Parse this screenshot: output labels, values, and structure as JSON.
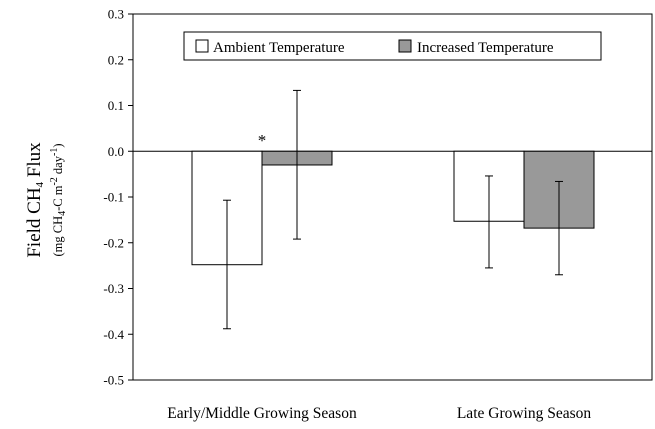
{
  "chart_data": {
    "type": "bar",
    "categories": [
      "Early/Middle Growing Season",
      "Late Growing Season"
    ],
    "series": [
      {
        "name": "Ambient Temperature",
        "values": [
          -0.248,
          -0.153
        ],
        "error_low": [
          -0.388,
          -0.255
        ],
        "error_high": [
          -0.107,
          -0.054
        ],
        "color": "#ffffff"
      },
      {
        "name": "Increased Temperature",
        "values": [
          -0.03,
          -0.168
        ],
        "error_low": [
          -0.192,
          -0.27
        ],
        "error_high": [
          0.133,
          -0.066
        ],
        "color": "#999999"
      }
    ],
    "ylim": [
      -0.5,
      0.3
    ],
    "yticks": [
      "-0.5",
      "-0.4",
      "-0.3",
      "-0.2",
      "-0.1",
      "0.0",
      "0.1",
      "0.2",
      "0.3"
    ],
    "ylabel": {
      "main_prefix": "Field CH",
      "main_sub": "4",
      "main_suffix": " Flux",
      "units_a": "(mg CH",
      "units_a_sub": "4",
      "units_b": "-C  m",
      "units_b_sup": "-2",
      "units_c": " day",
      "units_c_sup": "-1",
      "units_d": ")"
    },
    "annotations": [
      {
        "text": "*",
        "category": 0,
        "series": 1
      }
    ],
    "legend_position": "top-right",
    "grid": false
  }
}
